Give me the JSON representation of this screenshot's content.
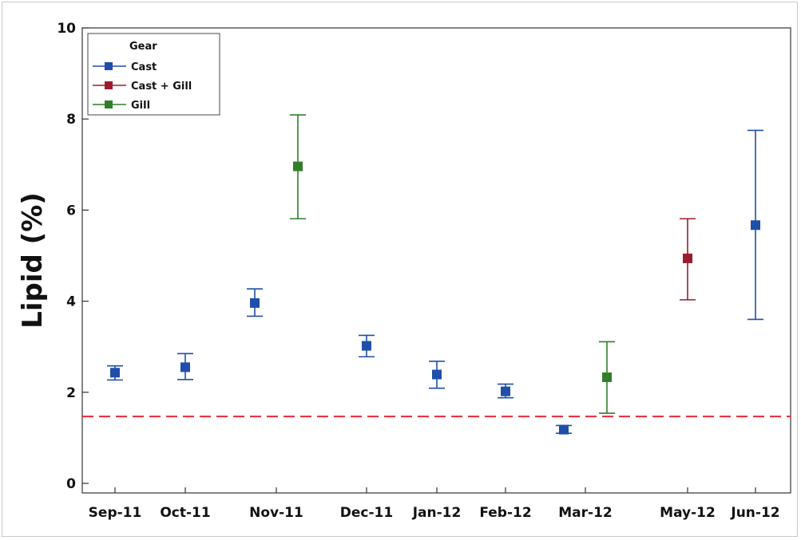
{
  "chart_data": {
    "type": "scatter",
    "title": "",
    "xlabel": "",
    "ylabel": "Lipid (%)",
    "ylim": [
      0,
      10
    ],
    "yticks": [
      0,
      2,
      4,
      6,
      8,
      10
    ],
    "categories": [
      "Sep-11",
      "Oct-11",
      "Nov-11",
      "Dec-11",
      "Jan-12",
      "Feb-12",
      "Mar-12",
      "May-12",
      "Jun-12"
    ],
    "legend": {
      "title": "Gear",
      "position": "top-left"
    },
    "reference_line": {
      "y": 1.47,
      "color": "#e8283c",
      "style": "dashed"
    },
    "series": [
      {
        "name": "Cast",
        "color": "#1f4fa8",
        "points": [
          {
            "category": "Sep-11",
            "offset": 0,
            "mean": 2.43,
            "lower": 2.27,
            "upper": 2.58
          },
          {
            "category": "Oct-11",
            "offset": 0,
            "mean": 2.55,
            "lower": 2.28,
            "upper": 2.85
          },
          {
            "category": "Nov-11",
            "offset": -1,
            "mean": 3.96,
            "lower": 3.67,
            "upper": 4.27
          },
          {
            "category": "Dec-11",
            "offset": 0,
            "mean": 3.02,
            "lower": 2.78,
            "upper": 3.25
          },
          {
            "category": "Jan-12",
            "offset": 0,
            "mean": 2.39,
            "lower": 2.09,
            "upper": 2.68
          },
          {
            "category": "Feb-12",
            "offset": 0,
            "mean": 2.02,
            "lower": 1.88,
            "upper": 2.18
          },
          {
            "category": "Mar-12",
            "offset": -1,
            "mean": 1.18,
            "lower": 1.1,
            "upper": 1.27
          },
          {
            "category": "Jun-12",
            "offset": 0,
            "mean": 5.67,
            "lower": 3.6,
            "upper": 7.75
          }
        ]
      },
      {
        "name": "Cast + Gill",
        "color": "#9b1b2e",
        "points": [
          {
            "category": "May-12",
            "offset": 0,
            "mean": 4.94,
            "lower": 4.03,
            "upper": 5.81
          }
        ]
      },
      {
        "name": "Gill",
        "color": "#2f7f2a",
        "points": [
          {
            "category": "Nov-11",
            "offset": 1,
            "mean": 6.96,
            "lower": 5.81,
            "upper": 8.09
          },
          {
            "category": "Mar-12",
            "offset": 1,
            "mean": 2.33,
            "lower": 1.54,
            "upper": 3.11
          }
        ]
      }
    ]
  }
}
